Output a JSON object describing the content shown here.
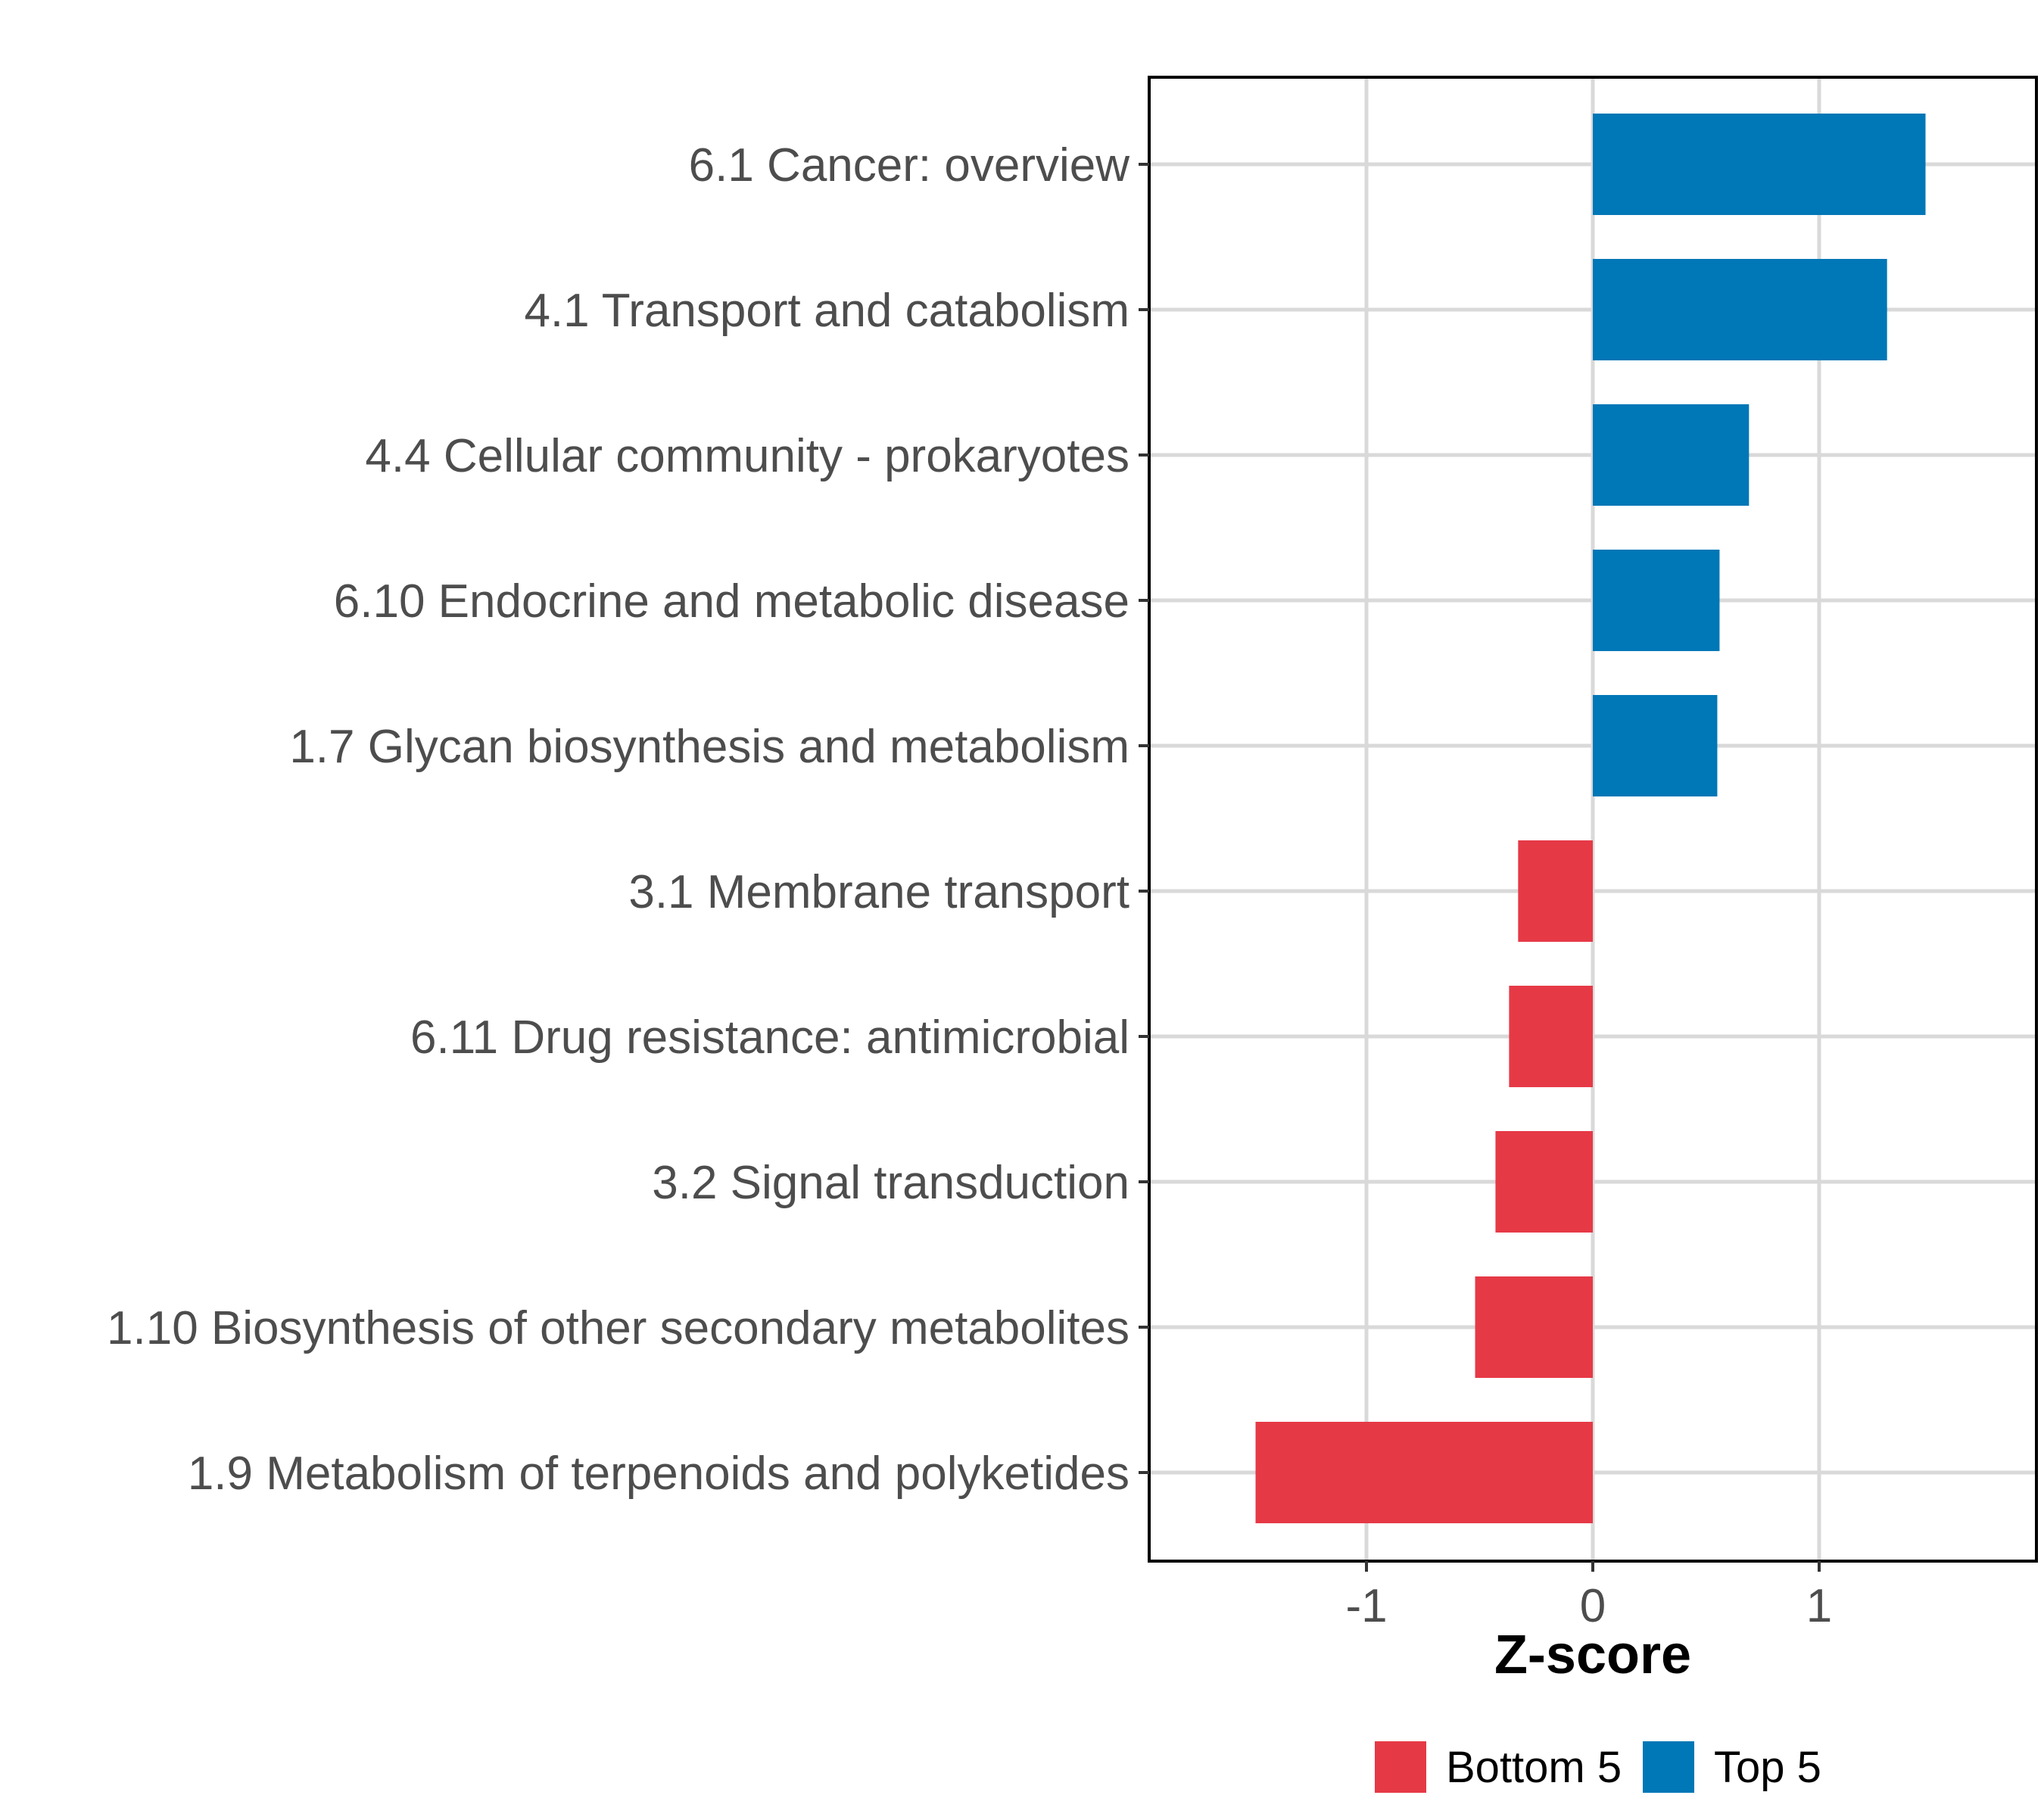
{
  "chart_data": {
    "type": "bar",
    "orientation": "horizontal",
    "title": "",
    "xlabel": "Z-score",
    "ylabel": "",
    "xlim": [
      -1.96,
      1.96
    ],
    "xticks": [
      -1,
      0,
      1
    ],
    "xtick_labels": [
      "-1",
      "0",
      "1"
    ],
    "grid": true,
    "legend_position": "bottom",
    "categories": [
      "6.1 Cancer: overview",
      "4.1 Transport and catabolism",
      "4.4 Cellular community - prokaryotes",
      "6.10 Endocrine and metabolic disease",
      "1.7 Glycan biosynthesis and metabolism",
      "3.1 Membrane transport",
      "6.11 Drug resistance: antimicrobial",
      "3.2 Signal transduction",
      "1.10 Biosynthesis of other secondary metabolites",
      "1.9 Metabolism of terpenoids and polyketides"
    ],
    "values": [
      1.47,
      1.3,
      0.69,
      0.56,
      0.55,
      -0.33,
      -0.37,
      -0.43,
      -0.52,
      -1.49
    ],
    "groups": [
      "Top 5",
      "Top 5",
      "Top 5",
      "Top 5",
      "Top 5",
      "Bottom 5",
      "Bottom 5",
      "Bottom 5",
      "Bottom 5",
      "Bottom 5"
    ],
    "legend": [
      {
        "name": "Bottom 5",
        "color": "#e63946"
      },
      {
        "name": "Top 5",
        "color": "#0077b6"
      }
    ]
  }
}
